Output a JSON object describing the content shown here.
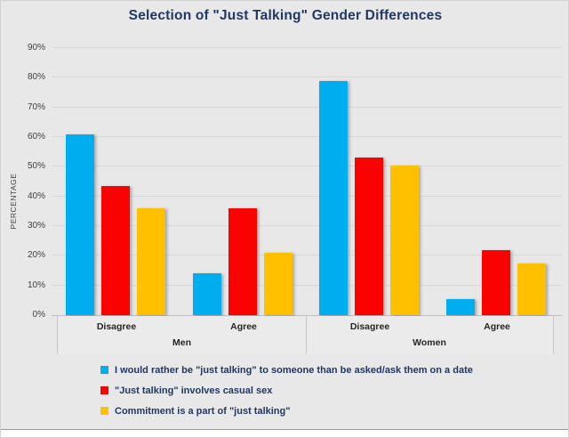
{
  "chart_data": {
    "type": "bar",
    "title": "Selection of \"Just Talking\" Gender Differences",
    "ylabel": "PERCENTAGE",
    "ylim": [
      0,
      90
    ],
    "ytick_step": 10,
    "ytick_suffix": "%",
    "grid": true,
    "legend_position": "bottom",
    "categories": [
      "Disagree",
      "Agree",
      "Disagree",
      "Agree"
    ],
    "group_labels": [
      "Men",
      "Women"
    ],
    "series": [
      {
        "name": "I would rather be \"just talking\" to someone than be asked/ask them on a date",
        "color": "#00AEEF",
        "values": [
          61,
          14,
          79,
          5.5
        ]
      },
      {
        "name": "\"Just talking\" involves casual sex",
        "color": "#FA0202",
        "values": [
          43.5,
          36,
          53,
          22
        ]
      },
      {
        "name": "Commitment is a part of \"just talking\"",
        "color": "#FFC000",
        "values": [
          36,
          21,
          50.5,
          17.5
        ]
      }
    ]
  },
  "colors": {
    "background": "#e8e8e8",
    "title_text": "#1f3864",
    "gridline": "#d9d9d9",
    "axis_line": "#bfbfbf"
  }
}
